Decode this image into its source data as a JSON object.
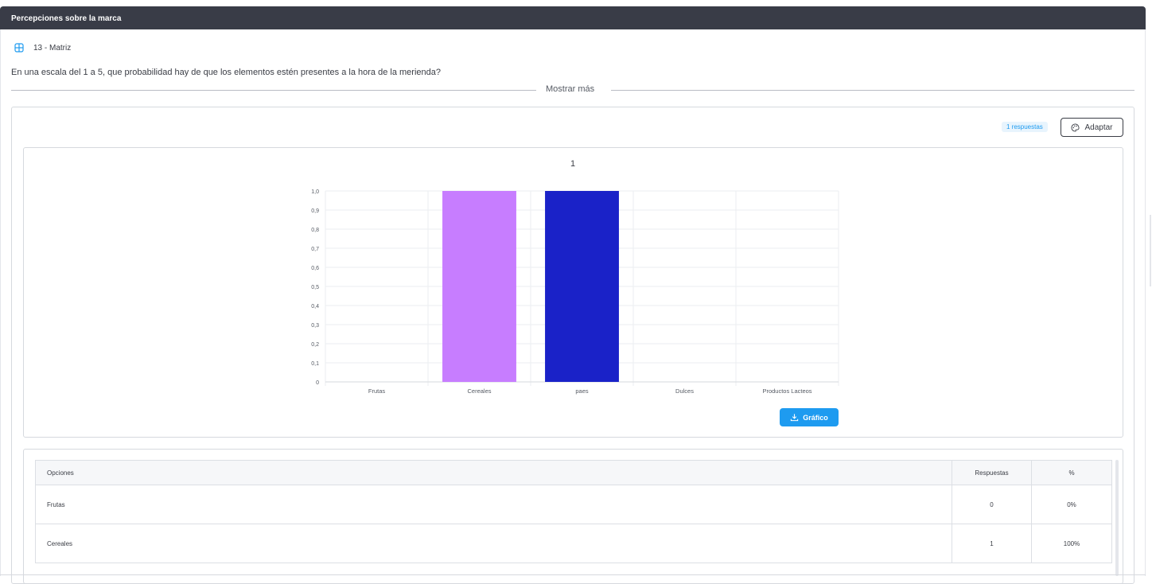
{
  "card": {
    "title": "Percepciones sobre la marca"
  },
  "question": {
    "type_label": "13 - Matriz",
    "text": "En una escala del 1 a 5, que probabilidad hay de que los elementos estén presentes a la hora de la merienda?",
    "show_more": "Mostrar más"
  },
  "toolbar": {
    "responses_badge": "1 respuestas",
    "adapt_label": "Adaptar"
  },
  "chart_data": {
    "type": "bar",
    "title": "1",
    "categories": [
      "Frutas",
      "Cereales",
      "paes",
      "Dulces",
      "Productos Lacteos"
    ],
    "values": [
      0,
      1,
      1,
      0,
      0
    ],
    "colors": [
      "#c77dff",
      "#c77dff",
      "#1a22c8",
      "#1a22c8",
      "#1a22c8"
    ],
    "ylim": [
      0,
      1
    ],
    "yticks": [
      "0",
      "0,1",
      "0,2",
      "0,3",
      "0,4",
      "0,5",
      "0,6",
      "0,7",
      "0,8",
      "0,9",
      "1,0"
    ],
    "grid": true
  },
  "chart_actions": {
    "download_label": "Gráfico"
  },
  "table": {
    "headers": {
      "options": "Opciones",
      "responses": "Respuestas",
      "percent": "%"
    },
    "rows": [
      {
        "option": "Frutas",
        "responses": "0",
        "percent": "0%"
      },
      {
        "option": "Cereales",
        "responses": "1",
        "percent": "100%"
      }
    ]
  },
  "colors": {
    "header_bg": "#393c47",
    "accent": "#1e9bf0"
  }
}
